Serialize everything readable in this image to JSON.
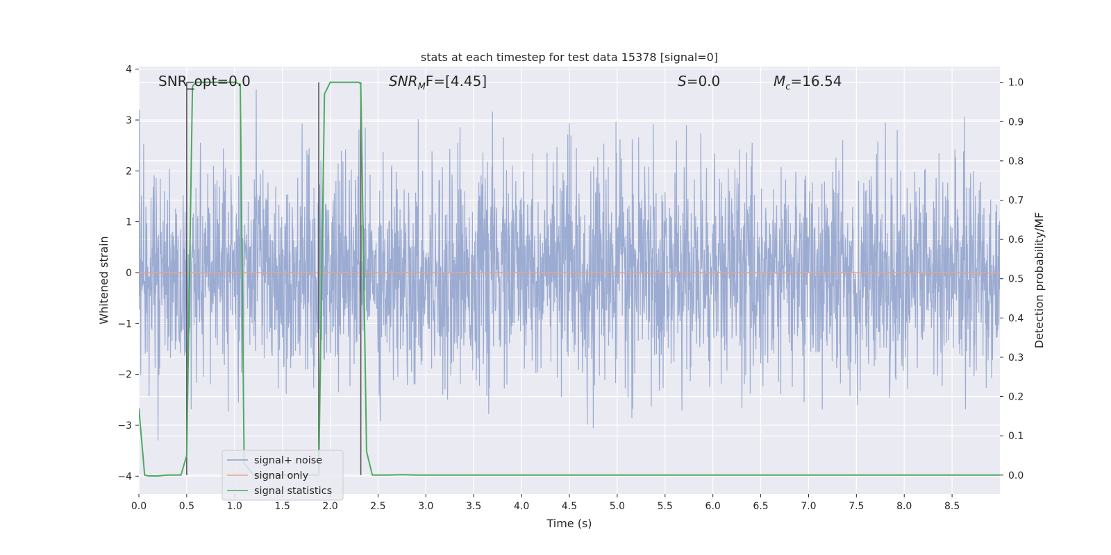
{
  "chart_data": {
    "type": "line",
    "title": "stats at each timestep for test data 15378 [signal=0]",
    "xlabel": "Time (s)",
    "ylabel_left": "Whitened strain",
    "ylabel_right": "Detection probability/MF",
    "xlim": [
      0.0,
      9.0
    ],
    "ylim_left": [
      -4.35,
      4.05
    ],
    "ylim_right": [
      -0.048,
      1.04
    ],
    "xticks": [
      "0.0",
      "0.5",
      "1.0",
      "1.5",
      "2.0",
      "2.5",
      "3.0",
      "3.5",
      "4.0",
      "4.5",
      "5.0",
      "5.5",
      "6.0",
      "6.5",
      "7.0",
      "7.5",
      "8.0",
      "8.5"
    ],
    "yticks_left": [
      "4",
      "3",
      "2",
      "1",
      "0",
      "−1",
      "−2",
      "−3",
      "−4"
    ],
    "yticks_right": [
      "1.0",
      "0.9",
      "0.8",
      "0.7",
      "0.6",
      "0.5",
      "0.4",
      "0.3",
      "0.2",
      "0.1",
      "0.0"
    ],
    "grid": true,
    "legend_position": "lower-left",
    "annotations": {
      "snr_opt": "SNR_opt=0.0",
      "snr_mf_main": "SNR",
      "snr_mf_sub": "M",
      "snr_mf_rest": "F=[4.45]",
      "s_main": "S",
      "s_rest": "=0.0",
      "mc_main": "M",
      "mc_sub": "c",
      "mc_rest": "=16.54"
    },
    "series": [
      {
        "name": "signal+ noise",
        "axis": "left",
        "color": "#8da0cb",
        "sample_rate_per_s": 300,
        "amplitude_std": 1.0,
        "y_range": [
          -3.6,
          3.6
        ]
      },
      {
        "name": "signal only",
        "axis": "left",
        "color": "#e5a48a",
        "x": [
          0.0,
          9.0
        ],
        "y": [
          0.0,
          0.0
        ]
      },
      {
        "name": "signal statistics",
        "axis": "right",
        "color": "#4daa5e",
        "x": [
          0.0,
          0.06,
          0.1,
          0.2,
          0.3,
          0.44,
          0.5,
          0.56,
          0.6,
          0.8,
          1.0,
          1.06,
          1.1,
          1.2,
          1.5,
          1.88,
          1.94,
          2.0,
          2.1,
          2.3,
          2.32,
          2.38,
          2.44,
          2.6,
          2.75,
          2.9,
          4.0,
          6.0,
          8.0,
          9.0
        ],
        "y": [
          0.17,
          0.0,
          -0.002,
          -0.002,
          0.0,
          0.0,
          0.05,
          0.99,
          1.0,
          1.0,
          1.0,
          0.995,
          0.03,
          0.0,
          0.0,
          0.0,
          0.97,
          1.0,
          1.0,
          1.0,
          0.995,
          0.06,
          0.0,
          0.0,
          0.001,
          0.0,
          0.0,
          0.0,
          0.0,
          0.0
        ]
      }
    ],
    "markers": [
      {
        "x": 0.5,
        "y_top": 1.0,
        "y_bottom": 0.0
      },
      {
        "x": 1.88,
        "y_top": 1.0,
        "y_bottom": 0.0
      },
      {
        "x": 2.32,
        "y_top": 1.0,
        "y_bottom": 0.0
      }
    ]
  }
}
